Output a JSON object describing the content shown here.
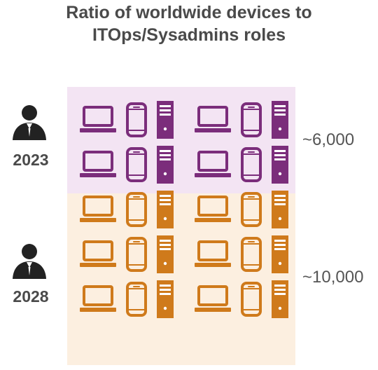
{
  "title": [
    "Ratio of worldwide devices to",
    "ITOps/Sysadmins roles"
  ],
  "colors": {
    "2023": "#7b2d7b",
    "2028": "#cf7a1b",
    "band_2023": "#f3e4f3",
    "band_2028": "#fcefe0",
    "person": "#222222"
  },
  "chart_data": {
    "type": "pictograph",
    "title": "Ratio of worldwide devices to ITOps/Sysadmins roles",
    "icon_types": [
      "laptop-icon",
      "phone-icon",
      "server-tower-icon"
    ],
    "rows": [
      {
        "year": "2023",
        "ratio_label": "~6,000",
        "devices_per_admin": 6000,
        "icon_rows": 2,
        "icon_color": "#7b2d7b"
      },
      {
        "year": "2028",
        "ratio_label": "~10,000",
        "devices_per_admin": 10000,
        "icon_rows": 3,
        "icon_color": "#cf7a1b"
      }
    ]
  }
}
